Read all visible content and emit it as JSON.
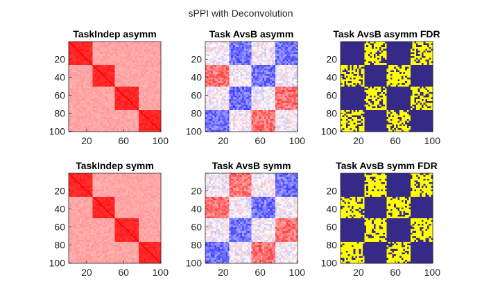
{
  "figure": {
    "suptitle": "sPPI with Deconvolution"
  },
  "chart_data": [
    {
      "type": "heatmap",
      "title": "TaskIndep asymm",
      "colormap": "white-red",
      "matrix_size": 100,
      "block_count": 4,
      "diagonal_block_level": 0.85,
      "offdiagonal_block_level": 0.35,
      "xticks": [
        20,
        60,
        100
      ],
      "yticks": [
        20,
        40,
        60,
        80,
        100
      ],
      "xlim": [
        1,
        100
      ],
      "ylim": [
        1,
        100
      ]
    },
    {
      "type": "heatmap",
      "title": "Task AvsB asymm",
      "colormap": "blue-white-red",
      "matrix_size": 100,
      "block_count": 4,
      "block_pattern": [
        [
          0,
          -1,
          0,
          -1
        ],
        [
          1,
          0,
          -1,
          0
        ],
        [
          0,
          -1,
          0,
          1
        ],
        [
          -1,
          0,
          1,
          0
        ]
      ],
      "xticks": [
        20,
        60,
        100
      ],
      "yticks": [
        20,
        40,
        60,
        80,
        100
      ],
      "xlim": [
        1,
        100
      ],
      "ylim": [
        1,
        100
      ]
    },
    {
      "type": "heatmap",
      "title": "Task AvsB asymm FDR",
      "colormap": "parula-binary",
      "colors": {
        "significant": "#ffff00",
        "not_significant": "#352a87"
      },
      "matrix_size": 100,
      "block_count": 4,
      "significant_blocks": [
        [
          0,
          1,
          0,
          1
        ],
        [
          1,
          0,
          1,
          0
        ],
        [
          0,
          1,
          0,
          1
        ],
        [
          1,
          0,
          1,
          0
        ]
      ],
      "significant_fraction": 0.7,
      "xticks": [
        20,
        60,
        100
      ],
      "yticks": [
        20,
        40,
        60,
        80,
        100
      ],
      "xlim": [
        1,
        100
      ],
      "ylim": [
        1,
        100
      ]
    },
    {
      "type": "heatmap",
      "title": "TaskIndep symm",
      "colormap": "white-red",
      "matrix_size": 100,
      "block_count": 4,
      "diagonal_block_level": 0.85,
      "offdiagonal_block_level": 0.35,
      "xticks": [
        20,
        60,
        100
      ],
      "yticks": [
        20,
        40,
        60,
        80,
        100
      ],
      "xlim": [
        1,
        100
      ],
      "ylim": [
        1,
        100
      ]
    },
    {
      "type": "heatmap",
      "title": "Task AvsB symm",
      "colormap": "blue-white-red",
      "matrix_size": 100,
      "block_count": 4,
      "block_pattern": [
        [
          0,
          1,
          0,
          -1
        ],
        [
          1,
          0,
          -1,
          0
        ],
        [
          0,
          -1,
          0,
          1
        ],
        [
          -1,
          0,
          1,
          0
        ]
      ],
      "xticks": [
        20,
        60,
        100
      ],
      "yticks": [
        20,
        40,
        60,
        80,
        100
      ],
      "xlim": [
        1,
        100
      ],
      "ylim": [
        1,
        100
      ]
    },
    {
      "type": "heatmap",
      "title": "Task AvsB symm FDR",
      "colormap": "parula-binary",
      "colors": {
        "significant": "#ffff00",
        "not_significant": "#352a87"
      },
      "matrix_size": 100,
      "block_count": 4,
      "significant_blocks": [
        [
          0,
          1,
          0,
          1
        ],
        [
          1,
          0,
          1,
          0
        ],
        [
          0,
          1,
          0,
          1
        ],
        [
          1,
          0,
          1,
          0
        ]
      ],
      "significant_fraction": 0.75,
      "xticks": [
        20,
        60,
        100
      ],
      "yticks": [
        20,
        40,
        60,
        80,
        100
      ],
      "xlim": [
        1,
        100
      ],
      "ylim": [
        1,
        100
      ]
    }
  ]
}
